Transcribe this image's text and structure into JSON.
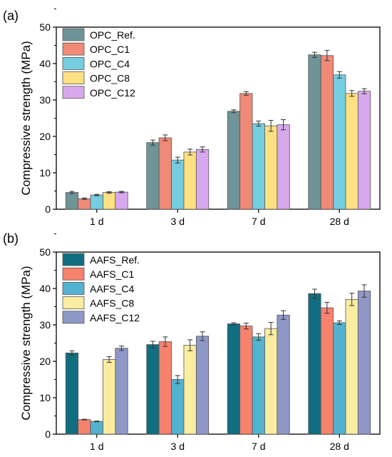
{
  "chart_data": [
    {
      "type": "bar",
      "panel_label": "(a)",
      "title": "",
      "xlabel": "",
      "ylabel": "Compressive strength (MPa)",
      "ylim": [
        0,
        50
      ],
      "yticks": [
        0,
        10,
        20,
        30,
        40,
        50
      ],
      "categories": [
        "1 d",
        "3 d",
        "7 d",
        "28 d"
      ],
      "legend_position": "top-left",
      "grid": false,
      "series": [
        {
          "name": "OPC_Ref.",
          "color": "#6e9498",
          "values": [
            4.6,
            18.3,
            26.9,
            42.4
          ],
          "errors": [
            0.3,
            0.7,
            0.4,
            0.7
          ]
        },
        {
          "name": "OPC_C1",
          "color": "#f08a78",
          "values": [
            2.9,
            19.6,
            31.8,
            42.2
          ],
          "errors": [
            0.2,
            0.8,
            0.5,
            1.4
          ]
        },
        {
          "name": "OPC_C4",
          "color": "#75cde0",
          "values": [
            3.9,
            13.5,
            23.5,
            36.9
          ],
          "errors": [
            0.2,
            0.8,
            0.7,
            0.9
          ]
        },
        {
          "name": "OPC_C8",
          "color": "#ffe082",
          "values": [
            4.6,
            15.7,
            22.9,
            31.8
          ],
          "errors": [
            0.2,
            0.8,
            1.5,
            0.8
          ]
        },
        {
          "name": "OPC_C12",
          "color": "#d8a8ee",
          "values": [
            4.7,
            16.4,
            23.2,
            32.4
          ],
          "errors": [
            0.2,
            0.7,
            1.4,
            0.7
          ]
        }
      ]
    },
    {
      "type": "bar",
      "panel_label": "(b)",
      "title": "",
      "xlabel": "",
      "ylabel": "Compressive strength (MPa)",
      "ylim": [
        0,
        50
      ],
      "yticks": [
        0,
        10,
        20,
        30,
        40,
        50
      ],
      "categories": [
        "1 d",
        "3 d",
        "7 d",
        "28 d"
      ],
      "legend_position": "top-left",
      "grid": false,
      "series": [
        {
          "name": "AAFS_Ref.",
          "color": "#106e80",
          "values": [
            22.3,
            24.6,
            30.3,
            38.6
          ],
          "errors": [
            0.6,
            0.9,
            0.3,
            1.2
          ]
        },
        {
          "name": "AAFS_C1",
          "color": "#f6826e",
          "values": [
            4.0,
            25.4,
            29.7,
            34.7
          ],
          "errors": [
            0.1,
            1.3,
            0.8,
            1.5
          ]
        },
        {
          "name": "AAFS_C4",
          "color": "#52b2cf",
          "values": [
            3.5,
            15.0,
            26.7,
            30.6
          ],
          "errors": [
            0.1,
            1.1,
            0.9,
            0.5
          ]
        },
        {
          "name": "AAFS_C8",
          "color": "#faeca0",
          "values": [
            20.5,
            24.4,
            29.0,
            37.0
          ],
          "errors": [
            0.8,
            1.5,
            1.7,
            1.7
          ]
        },
        {
          "name": "AAFS_C12",
          "color": "#8f97c6",
          "values": [
            23.6,
            26.9,
            32.7,
            39.3
          ],
          "errors": [
            0.6,
            1.2,
            1.2,
            1.7
          ]
        }
      ]
    }
  ]
}
